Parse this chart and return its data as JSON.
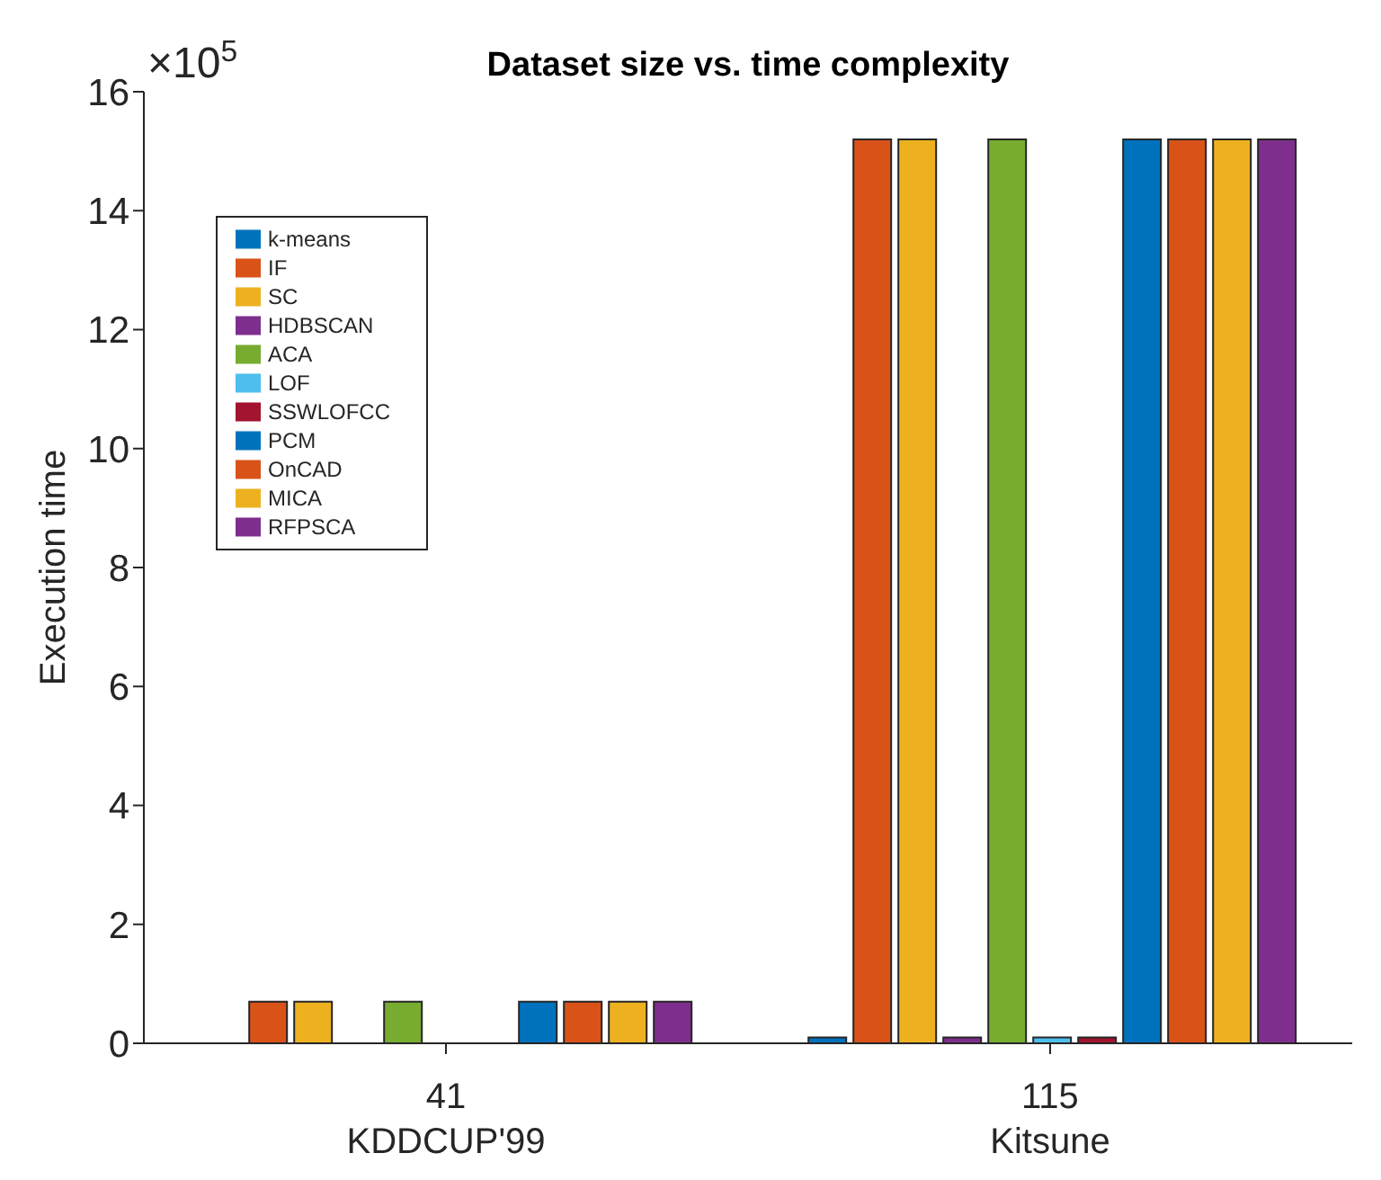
{
  "chart_data": {
    "type": "bar",
    "title": "Dataset size vs. time complexity",
    "ylabel": "Execution time",
    "annotations": [
      "×10$^{5}$"
    ],
    "categories": [
      "41\nKDDCUP'99",
      "115\nKitsune"
    ],
    "series": [
      {
        "name": "k-means",
        "color": "#0072bd",
        "values": [
          0,
          0.1
        ]
      },
      {
        "name": "IF",
        "color": "#d95319",
        "values": [
          0.7,
          15.2
        ]
      },
      {
        "name": "SC",
        "color": "#edb120",
        "values": [
          0.7,
          15.2
        ]
      },
      {
        "name": "HDBSCAN",
        "color": "#7e2f8e",
        "values": [
          0,
          0.1
        ]
      },
      {
        "name": "ACA",
        "color": "#77ac30",
        "values": [
          0.7,
          15.2
        ]
      },
      {
        "name": "LOF",
        "color": "#4dbeee",
        "values": [
          0,
          0.1
        ]
      },
      {
        "name": "SSWLOFCC",
        "color": "#a2142f",
        "values": [
          0,
          0.1
        ]
      },
      {
        "name": "PCM",
        "color": "#0072bd",
        "values": [
          0.7,
          15.2
        ]
      },
      {
        "name": "OnCAD",
        "color": "#d95319",
        "values": [
          0.7,
          15.2
        ]
      },
      {
        "name": "MICA",
        "color": "#edb120",
        "values": [
          0.7,
          15.2
        ]
      },
      {
        "name": "RFPSCA",
        "color": "#7e2f8e",
        "values": [
          0.7,
          15.2
        ]
      }
    ],
    "ylim": [
      0,
      16
    ],
    "yticks": [
      0,
      2,
      4,
      6,
      8,
      10,
      12,
      14,
      16
    ],
    "grid": false,
    "legend": "top left"
  }
}
